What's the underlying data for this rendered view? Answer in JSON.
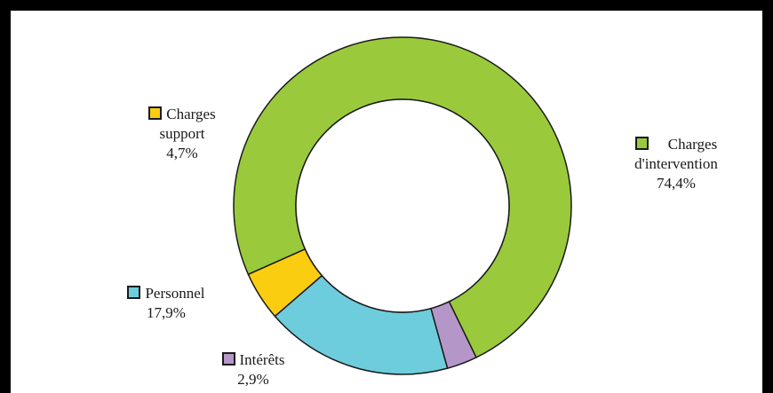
{
  "chart_data": {
    "type": "pie",
    "variant": "donut",
    "title": "",
    "legend": "inline labels next to slices",
    "slices": [
      {
        "label": "Charges d'intervention",
        "label_lines": [
          "Charges",
          "d'intervention"
        ],
        "value": 74.4,
        "value_text": "74,4%",
        "color": "#9ACA3C"
      },
      {
        "label": "Intérêts",
        "label_lines": [
          "Intérêts"
        ],
        "value": 2.9,
        "value_text": "2,9%",
        "color": "#B497C8"
      },
      {
        "label": "Personnel",
        "label_lines": [
          "Personnel"
        ],
        "value": 17.9,
        "value_text": "17,9%",
        "color": "#6ECDDD"
      },
      {
        "label": "Charges support",
        "label_lines": [
          "Charges",
          "support"
        ],
        "value": 4.7,
        "value_text": "4,7%",
        "color": "#FBCD11"
      }
    ]
  }
}
